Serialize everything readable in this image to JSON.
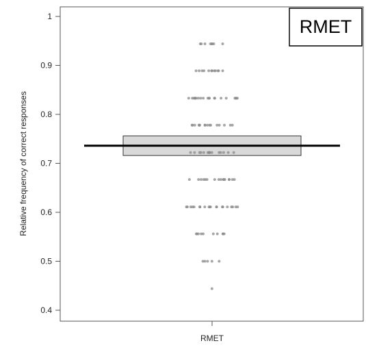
{
  "chart_data": {
    "type": "scatter",
    "subtype": "box-with-jittered-points",
    "panel_label": "RMET",
    "ylabel": "Relative frequency of correct responses",
    "xlabel": "",
    "categories": [
      "RMET"
    ],
    "ylim": [
      0.4,
      1.0
    ],
    "y_ticks": [
      0.4,
      0.5,
      0.6,
      0.7,
      0.8,
      0.9,
      1
    ],
    "y_tick_labels": [
      "0.4",
      "0.5",
      "0.6",
      "0.7",
      "0.8",
      "0.9",
      "1"
    ],
    "x_tick_labels": [
      "RMET"
    ],
    "grid": false,
    "legend": "none",
    "summary": {
      "mean": 0.736,
      "box_low": 0.716,
      "box_high": 0.756
    },
    "points": [
      {
        "y": 0.944,
        "count": 8
      },
      {
        "y": 0.889,
        "count": 12
      },
      {
        "y": 0.833,
        "count": 20
      },
      {
        "y": 0.778,
        "count": 16
      },
      {
        "y": 0.722,
        "count": 16
      },
      {
        "y": 0.667,
        "count": 16
      },
      {
        "y": 0.611,
        "count": 20
      },
      {
        "y": 0.556,
        "count": 10
      },
      {
        "y": 0.5,
        "count": 5
      },
      {
        "y": 0.444,
        "count": 1
      }
    ],
    "colors": {
      "points": "#8a8a8a",
      "box_fill": "#d9d9d9",
      "line": "#000000",
      "axis": "#555555"
    }
  }
}
